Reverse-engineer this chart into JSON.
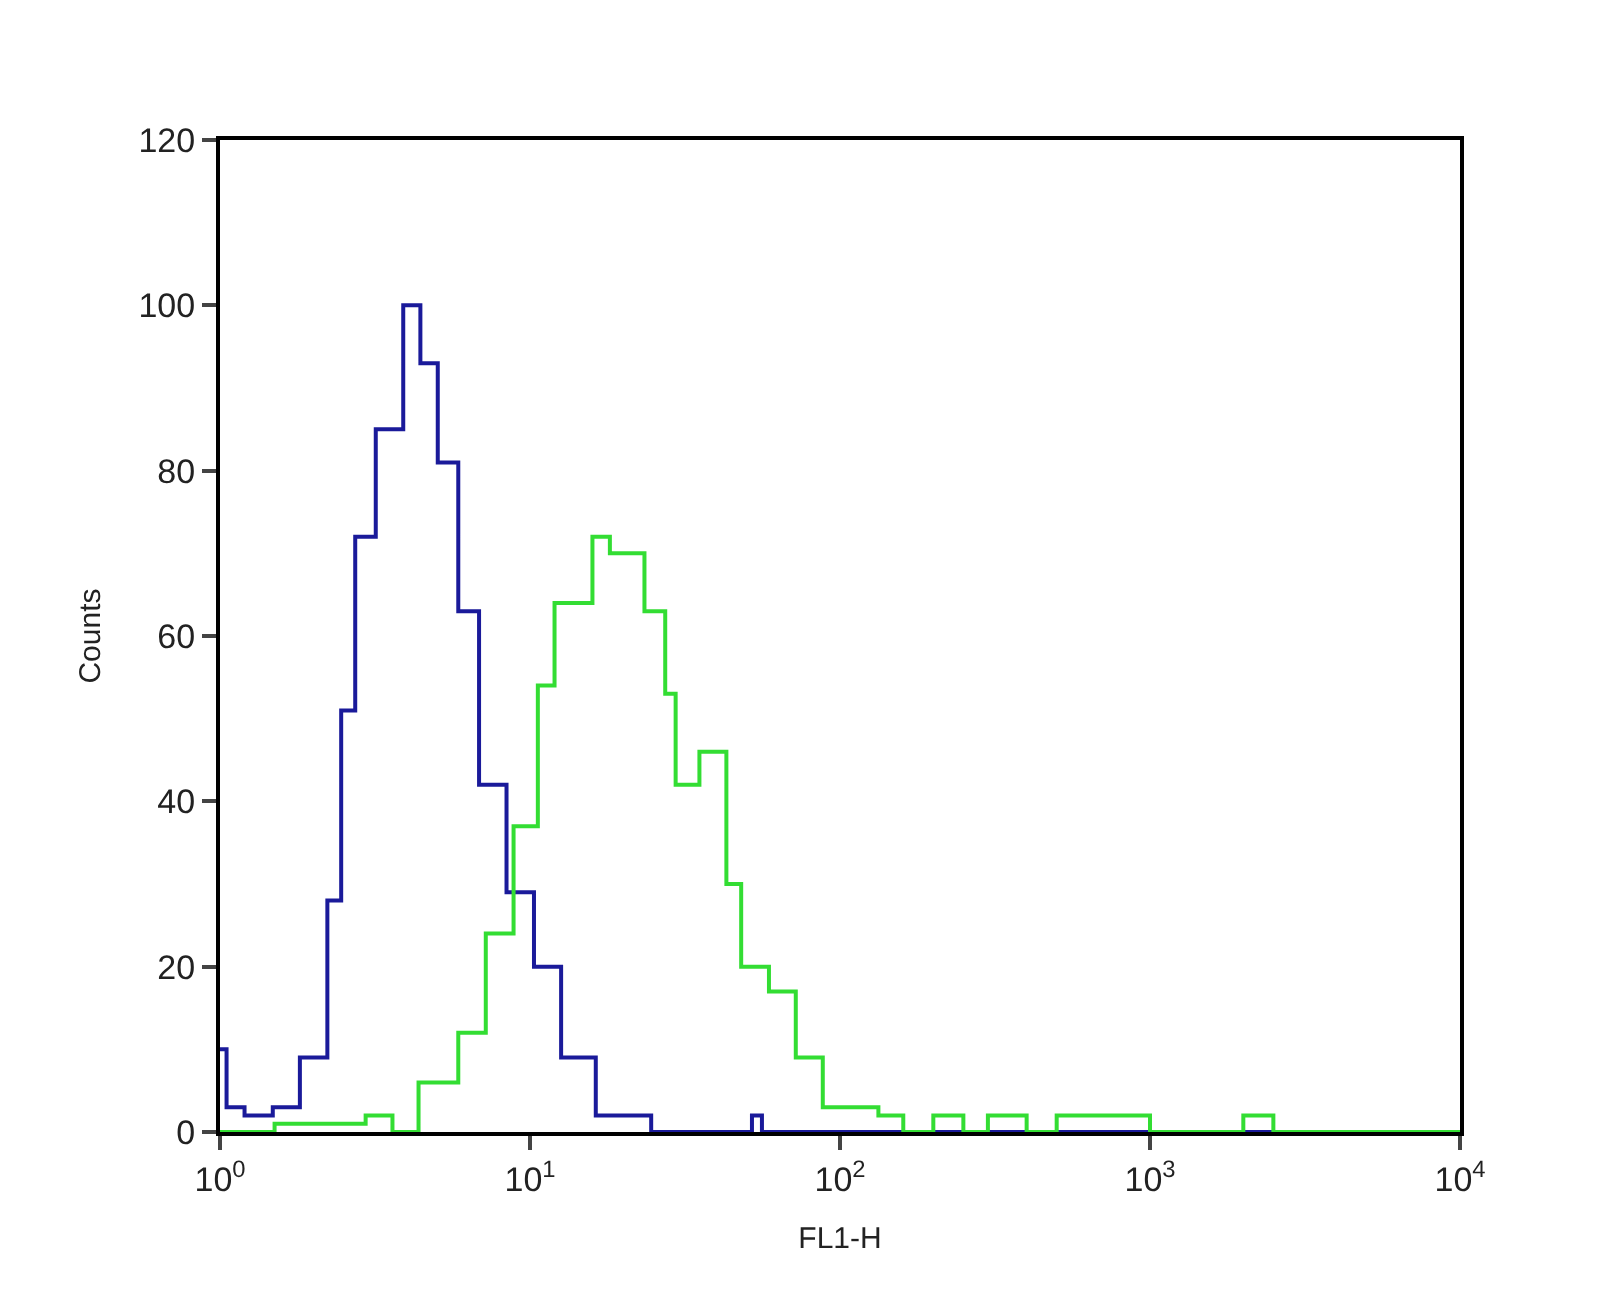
{
  "chart_data": {
    "type": "step",
    "xlabel": "FL1-H",
    "ylabel": "Counts",
    "log": "x",
    "xlim": [
      1,
      10000
    ],
    "xticks": [
      {
        "value": 1,
        "label": "10$^{0}$"
      },
      {
        "value": 10,
        "label": "10$^{1}$"
      },
      {
        "value": 100,
        "label": "10$^{2}$"
      },
      {
        "value": 1000,
        "label": "10$^{3}$"
      },
      {
        "value": 10000,
        "label": "10$^{4}$"
      }
    ],
    "ylim": [
      0,
      120
    ],
    "yticks": [
      0,
      20,
      40,
      60,
      80,
      100,
      120
    ],
    "series": [
      {
        "color": "#1a1a9a",
        "x": [
          1.0,
          1.05,
          1.2,
          1.48,
          1.81,
          2.22,
          2.46,
          2.73,
          3.18,
          3.9,
          4.43,
          5.04,
          5.87,
          6.85,
          8.4,
          10.3,
          12.6,
          16.3,
          21,
          24.6,
          48,
          52,
          56,
          10000
        ],
        "values": [
          10,
          3,
          2,
          3,
          9,
          28,
          51,
          72,
          85,
          100,
          93,
          81,
          63,
          42,
          29,
          20,
          9,
          2,
          2,
          0,
          0,
          2,
          0,
          0
        ]
      },
      {
        "color": "#33dd33",
        "x": [
          1.0,
          1.5,
          2.0,
          2.95,
          3.6,
          4.37,
          5.87,
          7.2,
          8.85,
          10.6,
          12,
          15.9,
          18.1,
          23.4,
          27.3,
          29.5,
          35.2,
          43,
          48,
          59,
          72,
          88,
          133,
          160,
          200,
          250,
          300,
          400,
          500,
          700,
          1000,
          2000,
          2500,
          10000
        ],
        "values": [
          0,
          1,
          1,
          2,
          0,
          6,
          12,
          24,
          37,
          54,
          64,
          72,
          70,
          63,
          53,
          42,
          46,
          30,
          20,
          17,
          9,
          3,
          2,
          0,
          2,
          0,
          2,
          0,
          2,
          2,
          0,
          2,
          0,
          0
        ]
      }
    ]
  }
}
